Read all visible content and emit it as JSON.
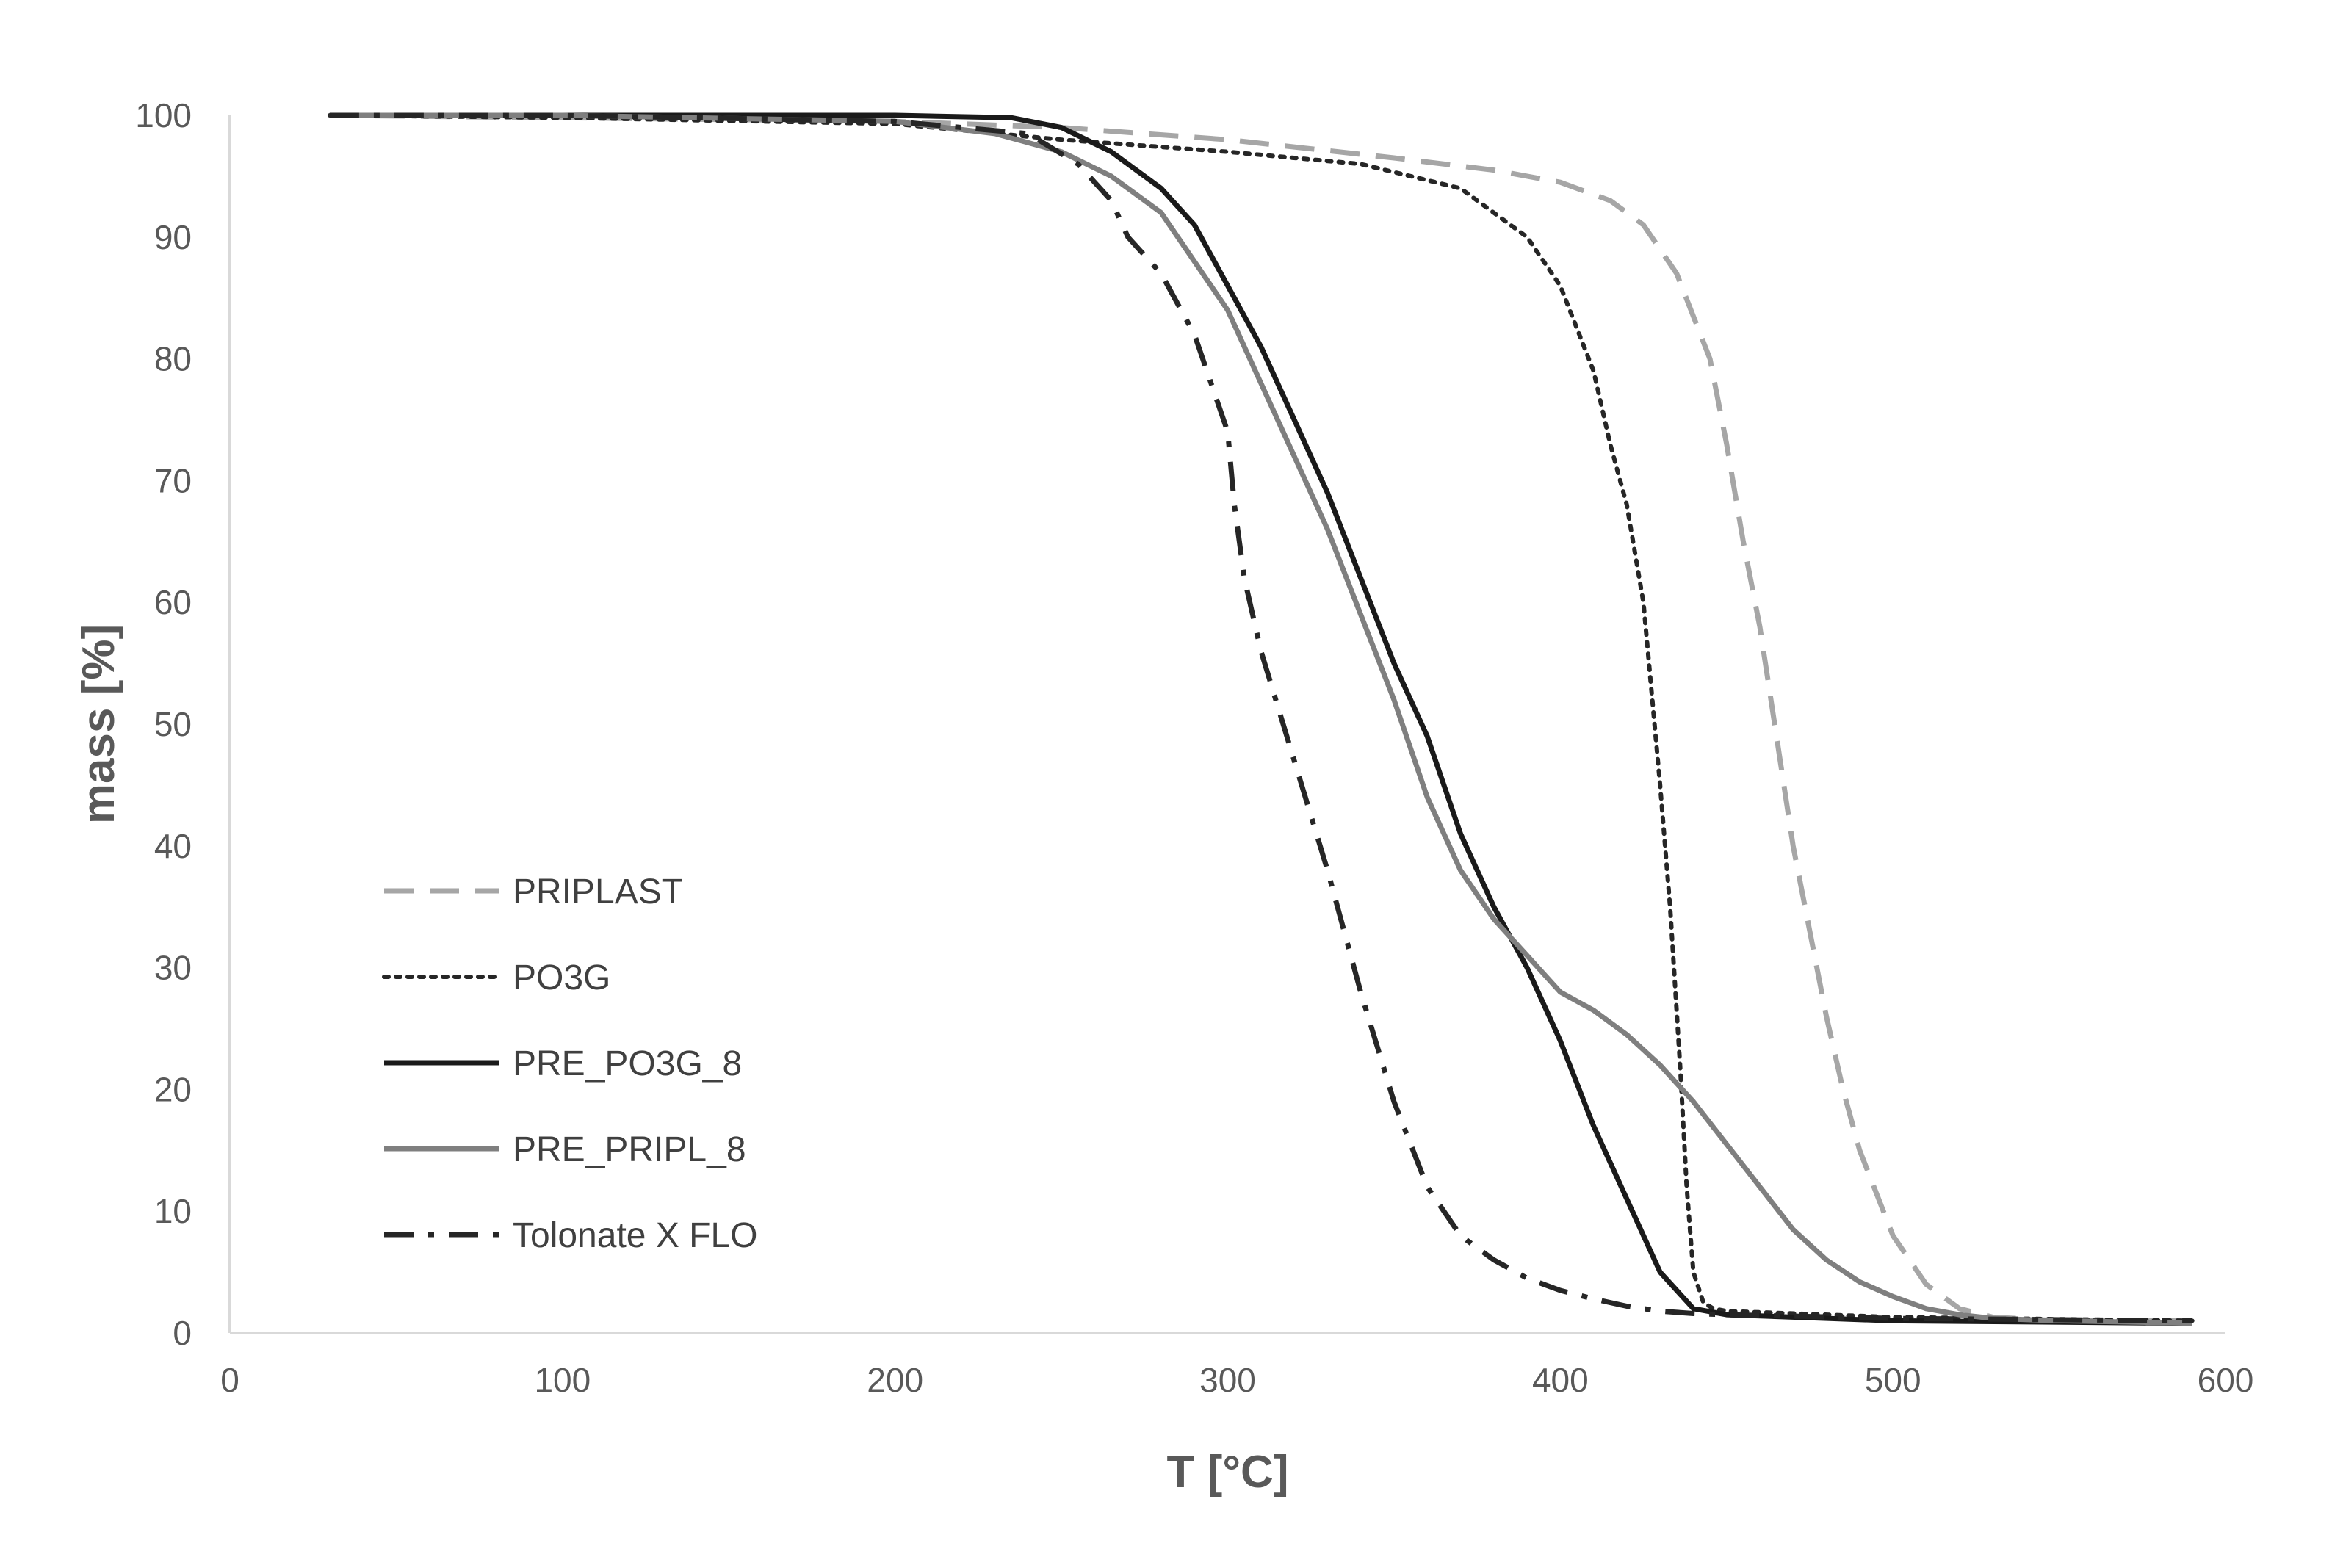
{
  "chart_data": {
    "type": "line",
    "title": "",
    "xlabel": "T [°C]",
    "ylabel": "mass [%]",
    "xlim": [
      0,
      600
    ],
    "ylim": [
      0,
      100
    ],
    "xticks": [
      0,
      100,
      200,
      300,
      400,
      500,
      600
    ],
    "yticks": [
      0,
      10,
      20,
      30,
      40,
      50,
      60,
      70,
      80,
      90,
      100
    ],
    "grid": false,
    "legend_position": "lower-left",
    "series": [
      {
        "name": "PRIPLAST",
        "style": "dashed",
        "color": "#a6a6a6",
        "x": [
          30,
          100,
          200,
          250,
          300,
          350,
          380,
          400,
          415,
          425,
          435,
          445,
          450,
          455,
          460,
          465,
          470,
          475,
          480,
          485,
          490,
          500,
          510,
          520,
          530,
          550,
          590
        ],
        "y": [
          100,
          99.8,
          99.5,
          99,
          98,
          96.5,
          95.5,
          94.5,
          93,
          91,
          87,
          80,
          73,
          65,
          58,
          49,
          40,
          33,
          26,
          20,
          15,
          8,
          4,
          2,
          1.3,
          1,
          1
        ]
      },
      {
        "name": "PO3G",
        "style": "dotted",
        "color": "#262626",
        "x": [
          30,
          100,
          200,
          250,
          300,
          340,
          370,
          390,
          400,
          410,
          415,
          420,
          425,
          430,
          433,
          436,
          438,
          440,
          443,
          446,
          450,
          500,
          590
        ],
        "y": [
          100,
          99.8,
          99.3,
          98,
          97,
          96,
          94,
          90,
          86,
          79,
          73,
          68,
          60,
          45,
          35,
          22,
          12,
          5,
          2.5,
          2,
          1.8,
          1.3,
          1
        ]
      },
      {
        "name": "PRE_PO3G_8",
        "style": "solid",
        "color": "#1a1a1a",
        "x": [
          30,
          100,
          200,
          235,
          250,
          265,
          280,
          290,
          300,
          310,
          320,
          330,
          340,
          350,
          360,
          370,
          380,
          390,
          400,
          410,
          420,
          430,
          440,
          450,
          500,
          590
        ],
        "y": [
          100,
          100,
          100,
          99.8,
          99,
          97,
          94,
          91,
          86,
          81,
          75,
          69,
          62,
          55,
          49,
          41,
          35,
          30,
          24,
          17,
          11,
          5,
          2,
          1.5,
          1,
          0.8
        ]
      },
      {
        "name": "PRE_PRIPL_8",
        "style": "solid",
        "color": "#7f7f7f",
        "x": [
          30,
          100,
          200,
          230,
          250,
          265,
          280,
          290,
          300,
          310,
          320,
          330,
          340,
          350,
          360,
          370,
          380,
          390,
          400,
          410,
          420,
          430,
          440,
          450,
          460,
          470,
          480,
          490,
          500,
          510,
          520,
          530,
          550,
          590
        ],
        "y": [
          100,
          100,
          99.5,
          98.5,
          97,
          95,
          92,
          88,
          84,
          78,
          72,
          66,
          59,
          52,
          44,
          38,
          34,
          31,
          28,
          26.5,
          24.5,
          22,
          19,
          15.5,
          12,
          8.5,
          6,
          4.2,
          3,
          2,
          1.5,
          1.2,
          1,
          0.8
        ]
      },
      {
        "name": "Tolonate X FLO",
        "style": "dashdot",
        "color": "#262626",
        "x": [
          30,
          100,
          200,
          240,
          255,
          265,
          270,
          280,
          290,
          300,
          302,
          305,
          310,
          320,
          330,
          340,
          350,
          360,
          370,
          380,
          390,
          400,
          410,
          420,
          430,
          440,
          450,
          500,
          590
        ],
        "y": [
          100,
          100,
          99.5,
          98.5,
          96,
          93,
          90,
          87,
          82,
          74,
          68,
          62,
          56,
          47,
          38,
          28,
          19,
          12,
          8,
          6,
          4.5,
          3.5,
          2.8,
          2.2,
          1.8,
          1.6,
          1.5,
          1.2,
          1
        ]
      }
    ]
  }
}
